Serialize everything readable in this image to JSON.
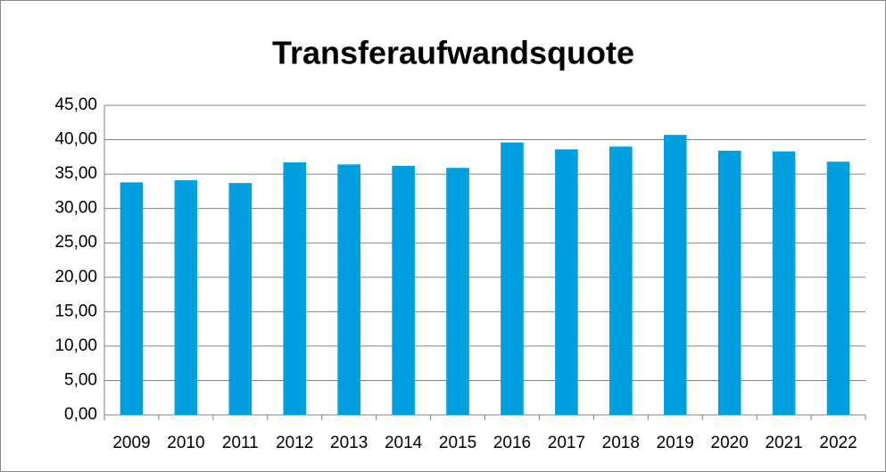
{
  "chart_data": {
    "type": "bar",
    "title": "Transferaufwandsquote",
    "categories": [
      "2009",
      "2010",
      "2011",
      "2012",
      "2013",
      "2014",
      "2015",
      "2016",
      "2017",
      "2018",
      "2019",
      "2020",
      "2021",
      "2022"
    ],
    "values": [
      33.8,
      34.1,
      33.7,
      36.7,
      36.4,
      36.2,
      35.9,
      39.6,
      38.6,
      39.0,
      40.7,
      38.4,
      38.3,
      36.8
    ],
    "color": "#009fdf",
    "ylim": [
      0,
      45
    ],
    "yticks": [
      {
        "value": 0,
        "label": "0,00"
      },
      {
        "value": 5,
        "label": "5,00"
      },
      {
        "value": 10,
        "label": "10,00"
      },
      {
        "value": 15,
        "label": "15,00"
      },
      {
        "value": 20,
        "label": "20,00"
      },
      {
        "value": 25,
        "label": "25,00"
      },
      {
        "value": 30,
        "label": "30,00"
      },
      {
        "value": 35,
        "label": "35,00"
      },
      {
        "value": 40,
        "label": "40,00"
      },
      {
        "value": 45,
        "label": "45,00"
      }
    ],
    "grid": true
  }
}
